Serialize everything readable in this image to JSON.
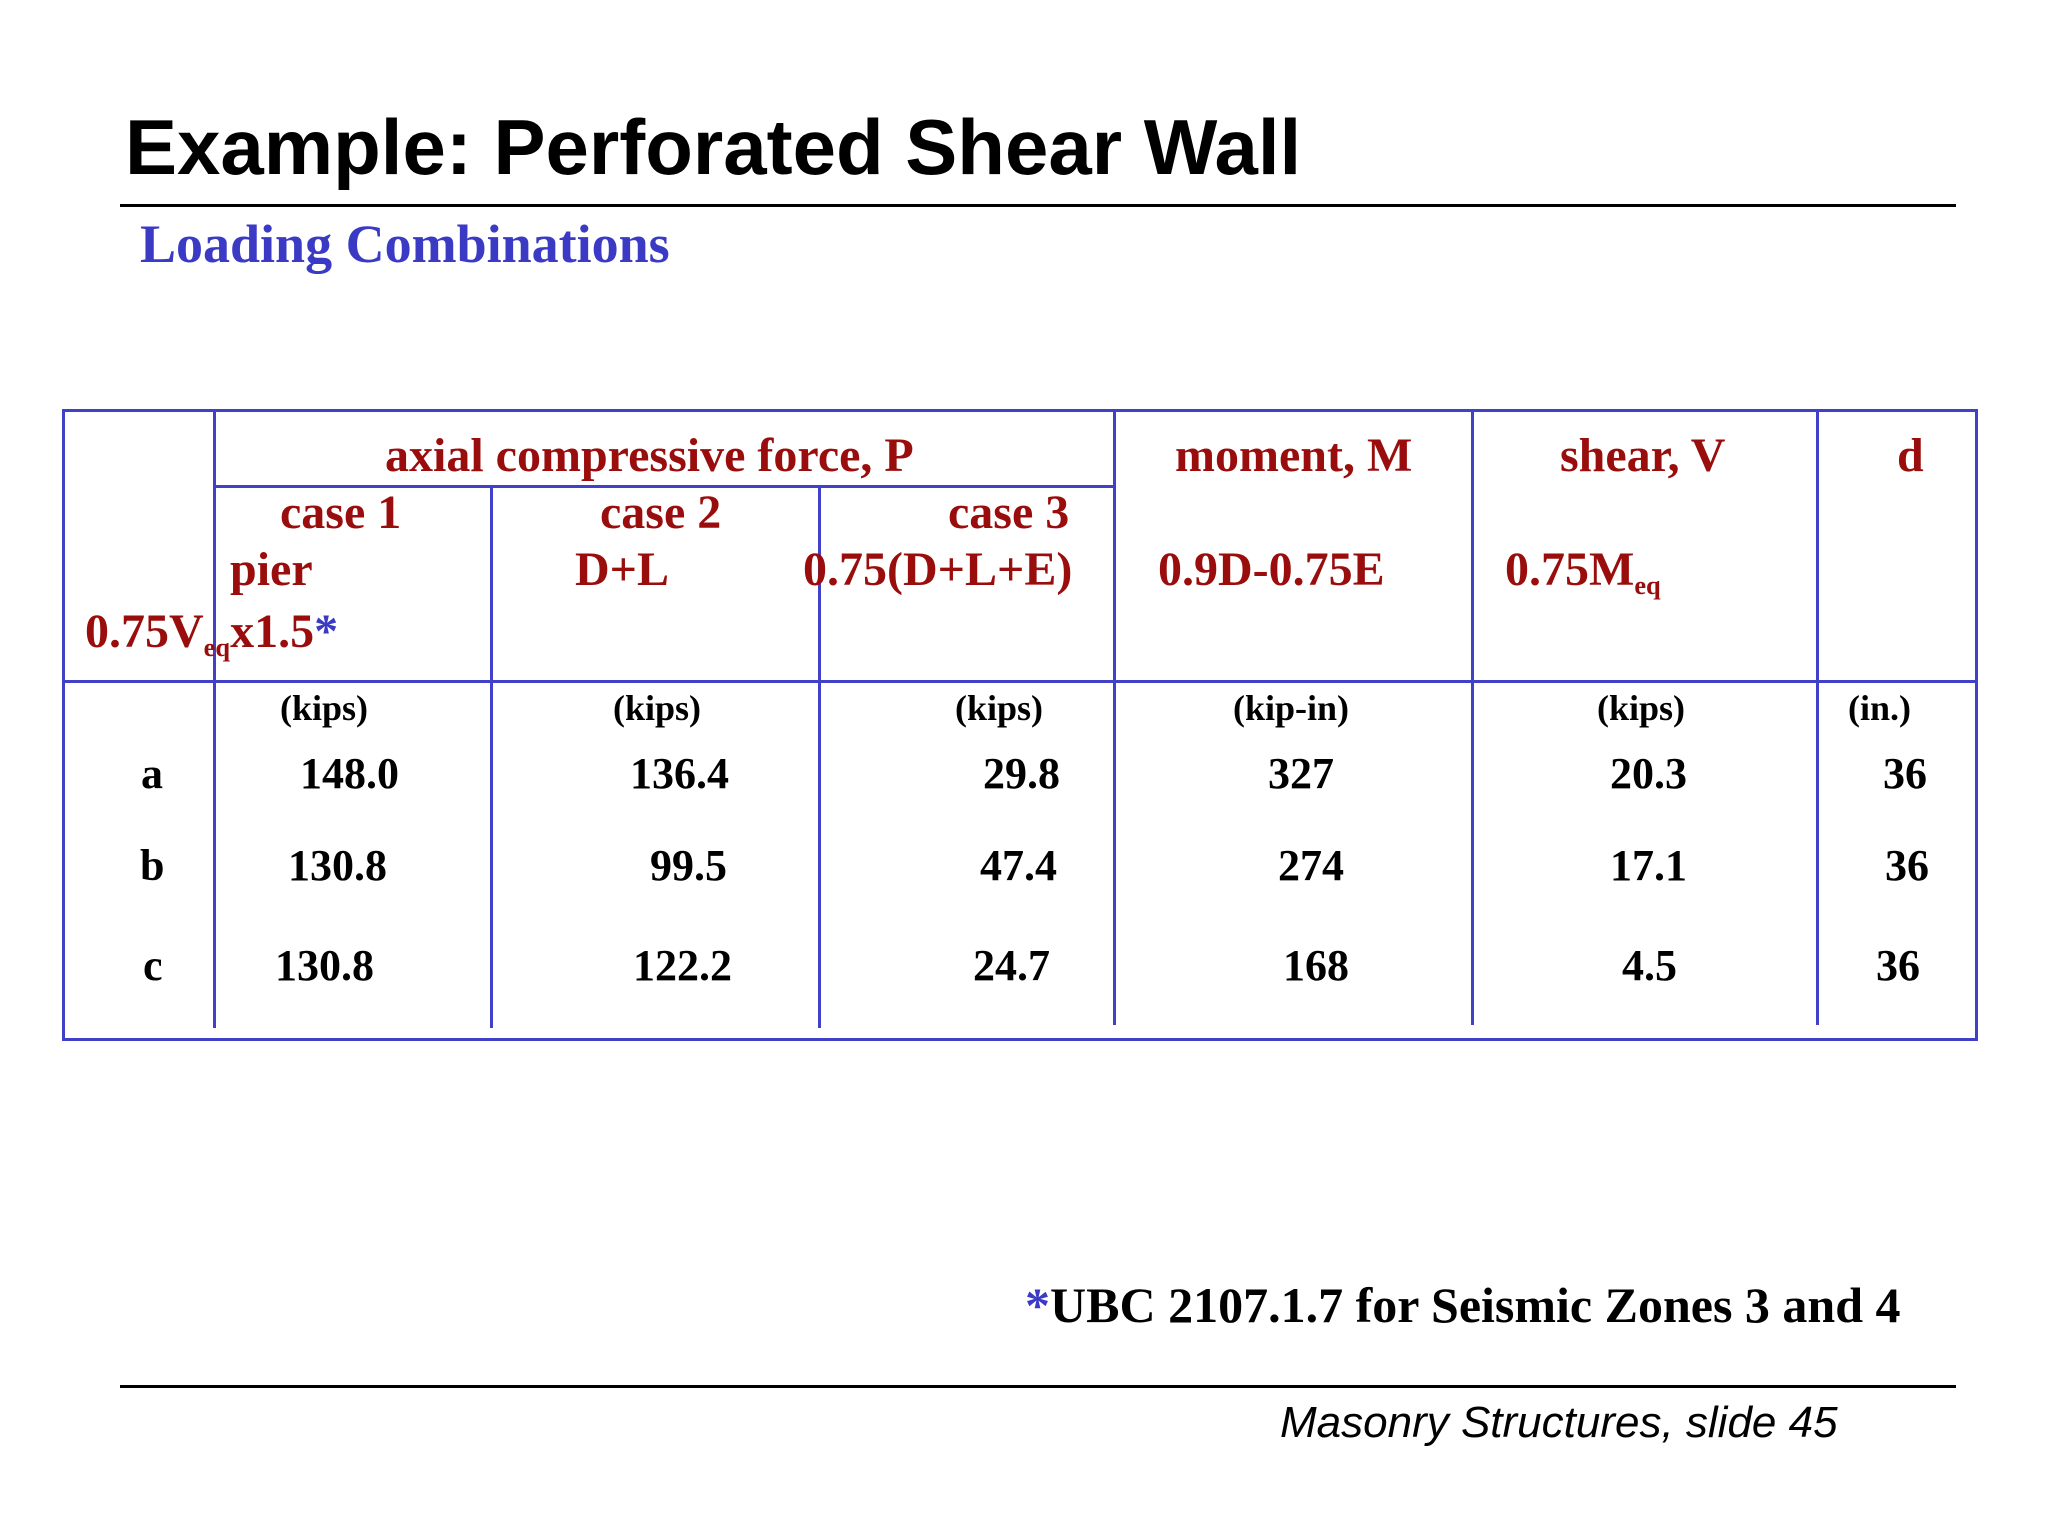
{
  "slide": {
    "title": "Example: Perforated Shear Wall",
    "subtitle": "Loading Combinations",
    "footer": "Masonry Structures, slide 45"
  },
  "table": {
    "header": {
      "axial": "axial compressive force, P",
      "moment": "moment, M",
      "shear": "shear, V",
      "d": "d",
      "case1": "case 1",
      "case2": "case 2",
      "case3": "case 3",
      "pier": "pier",
      "c2_formula": "D+L",
      "c3_formula": "0.75(D+L+E)",
      "moment_formula": "0.9D-0.75E",
      "shear_formula_main": "0.75M",
      "shear_formula_sub": "eq",
      "pier_formula_a": "0.75V",
      "pier_formula_sub": "eq",
      "pier_formula_b": "x1.5",
      "pier_formula_star": "*"
    },
    "units": [
      "(kips)",
      "(kips)",
      "(kips)",
      "(kip-in)",
      "(kips)",
      "(in.)"
    ],
    "rows": [
      {
        "label": "a",
        "values": [
          "148.0",
          "136.4",
          "29.8",
          "327",
          "20.3",
          "36"
        ]
      },
      {
        "label": "b",
        "values": [
          "130.8",
          "99.5",
          "47.4",
          "274",
          "17.1",
          "36"
        ]
      },
      {
        "label": "c",
        "values": [
          "130.8",
          "122.2",
          "24.7",
          "168",
          "4.5",
          "36"
        ]
      }
    ]
  },
  "footnote": {
    "star": "*",
    "text": "UBC 2107.1.7 for Seismic Zones 3 and 4"
  },
  "colors": {
    "title": "#000000",
    "subtitle": "#3a3ac4",
    "header_text": "#9a0d0d",
    "table_lines": "#4040c8"
  }
}
